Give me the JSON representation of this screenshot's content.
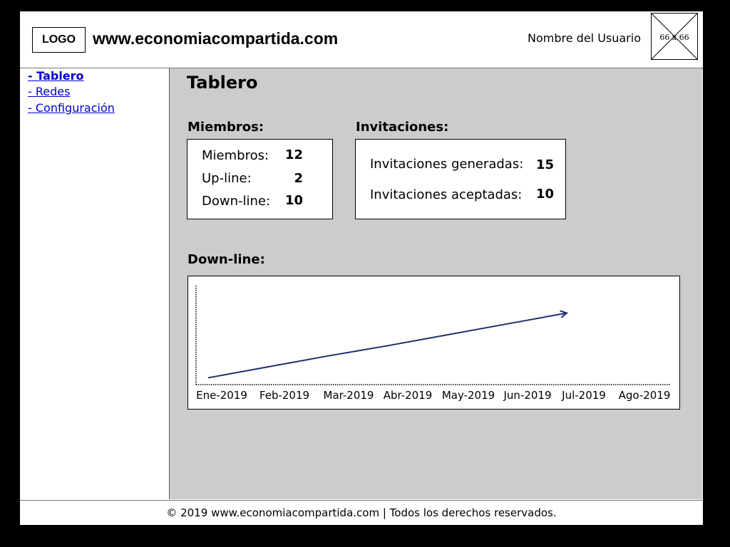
{
  "header": {
    "logo": "LOGO",
    "site": "www.economiacompartida.com",
    "user_name": "Nombre del Usuario",
    "avatar_label": "66 x 66"
  },
  "sidebar": {
    "items": [
      {
        "label": "- Tablero",
        "active": true
      },
      {
        "label": "- Redes",
        "active": false
      },
      {
        "label": "- Configuración",
        "active": false
      }
    ]
  },
  "main": {
    "title": "Tablero",
    "members": {
      "heading": "Miembros:",
      "rows": [
        {
          "label": "Miembros:",
          "value": "12"
        },
        {
          "label": "Up-line:",
          "value": "2"
        },
        {
          "label": "Down-line:",
          "value": "10"
        }
      ]
    },
    "invitations": {
      "heading": "Invitaciones:",
      "rows": [
        {
          "label": "Invitaciones generadas:",
          "value": "15"
        },
        {
          "label": "Invitaciones aceptadas:",
          "value": "10"
        }
      ]
    },
    "downline_heading": "Down-line:"
  },
  "chart_data": {
    "type": "line",
    "categories": [
      "Ene-2019",
      "Feb-2019",
      "Mar-2019",
      "Abr-2019",
      "May-2019",
      "Jun-2019",
      "Jul-2019",
      "Ago-2019"
    ],
    "series": [
      {
        "values": [
          1,
          2.6,
          4.2,
          5.7,
          7.3,
          8.9,
          10.5,
          null
        ]
      }
    ],
    "ylim": [
      0,
      14
    ],
    "line_color": "#1f2d6b",
    "grid": false,
    "title": "",
    "xlabel": "",
    "ylabel": ""
  },
  "footer": {
    "text": "© 2019 www.economiacompartida.com | Todos los derechos reservados."
  }
}
